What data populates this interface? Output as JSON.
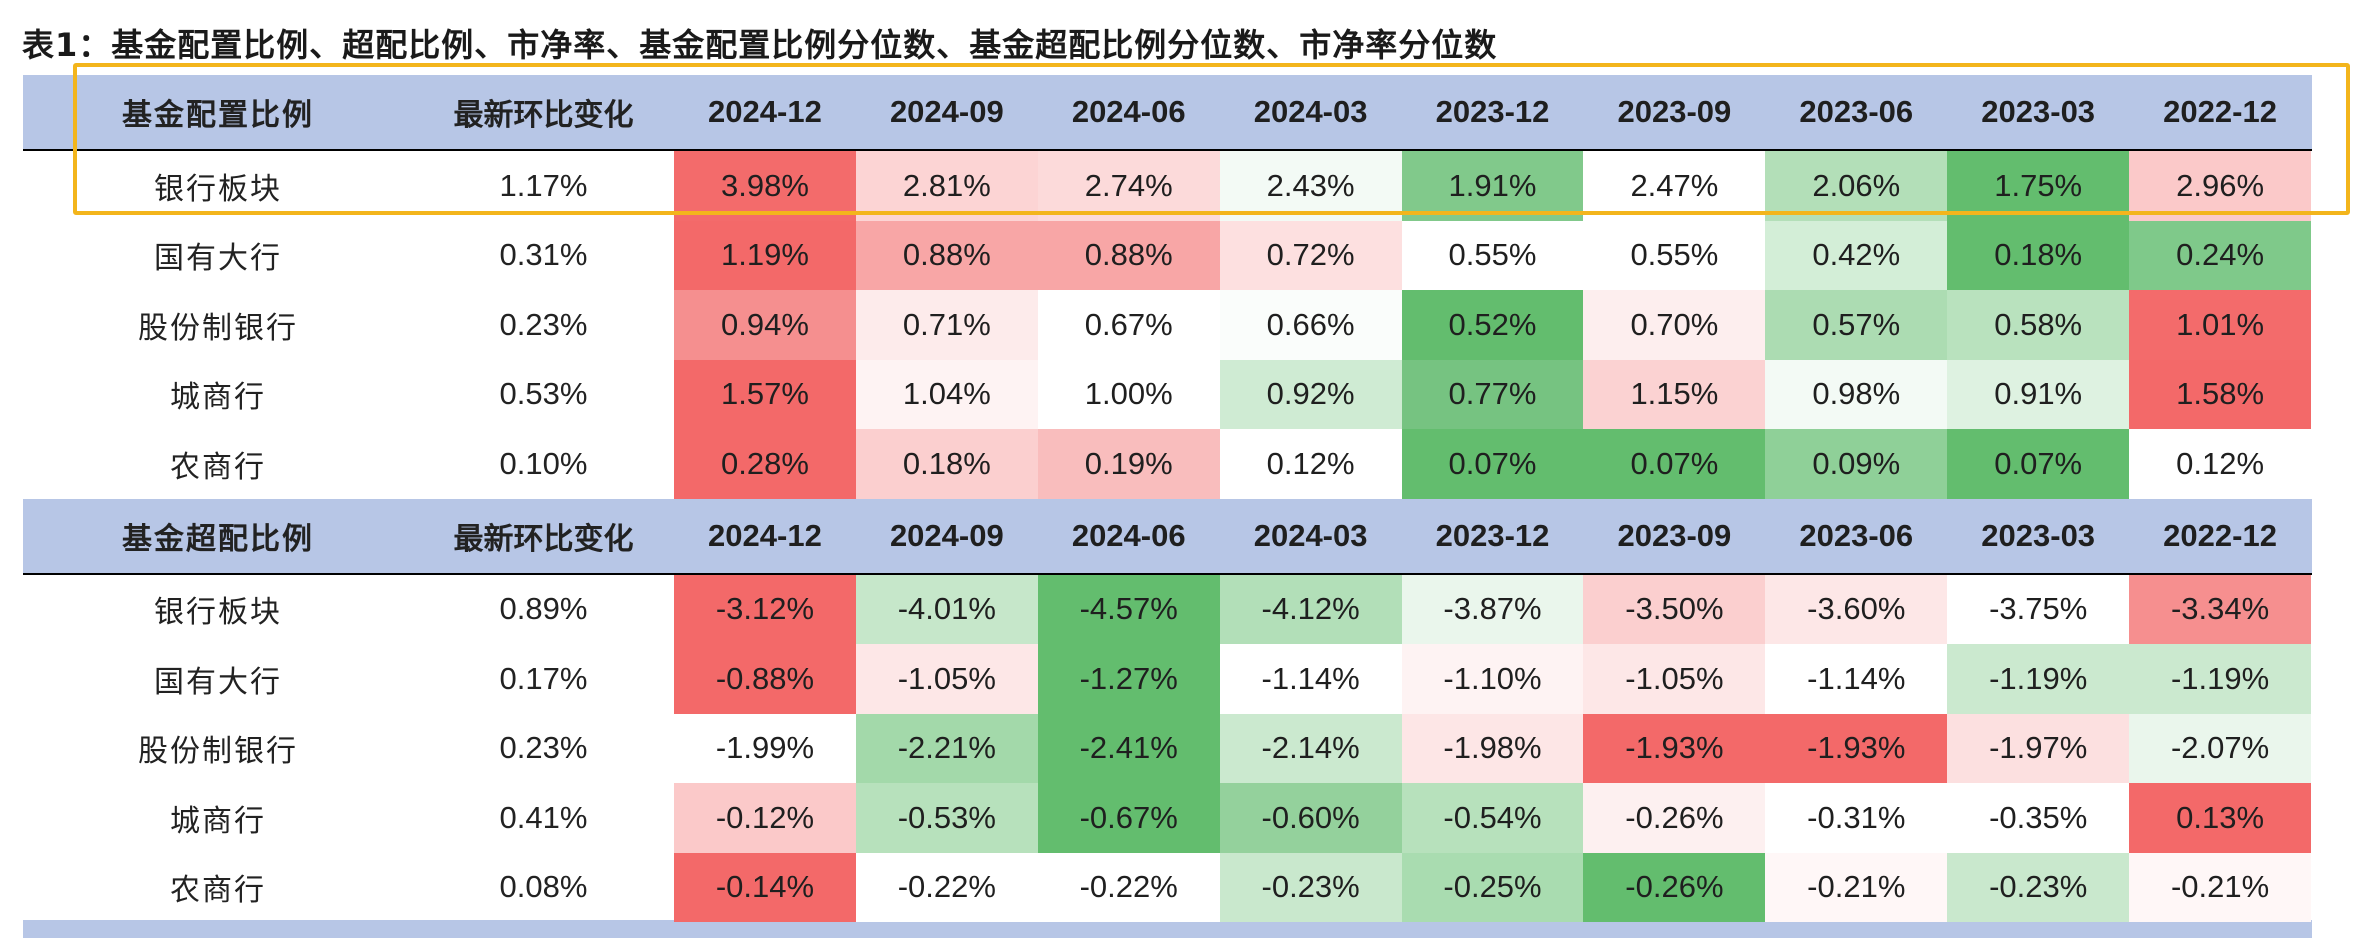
{
  "title": "表1：基金配置比例、超配比例、市净率、基金配置比例分位数、基金超配比例分位数、市净率分位数",
  "sections": [
    {
      "label": "基金配置比例",
      "change_label": "最新环比变化",
      "periods": [
        "2024-12",
        "2024-09",
        "2024-06",
        "2024-03",
        "2023-12",
        "2023-09",
        "2023-06",
        "2023-03",
        "2022-12"
      ],
      "rows": [
        {
          "name": "银行板块",
          "change": "1.17%",
          "values": [
            "3.98%",
            "2.81%",
            "2.74%",
            "2.43%",
            "1.91%",
            "2.47%",
            "2.06%",
            "1.75%",
            "2.96%"
          ],
          "colors": [
            "#f36b6b",
            "#fcd4d4",
            "#fcdada",
            "#f3faf5",
            "#81c98b",
            "#ffffff",
            "#b3dfb8",
            "#63bd6e",
            "#fbc9c9"
          ]
        },
        {
          "name": "国有大行",
          "change": "0.31%",
          "values": [
            "1.19%",
            "0.88%",
            "0.88%",
            "0.72%",
            "0.55%",
            "0.55%",
            "0.42%",
            "0.18%",
            "0.24%"
          ],
          "colors": [
            "#f36969",
            "#f8a6a6",
            "#f8a6a6",
            "#fde0e0",
            "#ffffff",
            "#ffffff",
            "#d3eed7",
            "#63bd6e",
            "#7fc98a"
          ]
        },
        {
          "name": "股份制银行",
          "change": "0.23%",
          "values": [
            "0.94%",
            "0.71%",
            "0.67%",
            "0.66%",
            "0.52%",
            "0.70%",
            "0.57%",
            "0.58%",
            "1.01%"
          ],
          "colors": [
            "#f58f8f",
            "#fdebeb",
            "#ffffff",
            "#fafdfb",
            "#63bd6e",
            "#fdeeee",
            "#acdcb2",
            "#b9e2be",
            "#f36b6b"
          ]
        },
        {
          "name": "城商行",
          "change": "0.53%",
          "values": [
            "1.57%",
            "1.04%",
            "1.00%",
            "0.92%",
            "0.77%",
            "1.15%",
            "0.98%",
            "0.91%",
            "1.58%"
          ],
          "colors": [
            "#f36969",
            "#fef3f3",
            "#ffffff",
            "#cfebd3",
            "#76c381",
            "#fbd2d2",
            "#f3faf5",
            "#def2e1",
            "#f36969"
          ]
        },
        {
          "name": "农商行",
          "change": "0.10%",
          "values": [
            "0.28%",
            "0.18%",
            "0.19%",
            "0.12%",
            "0.07%",
            "0.07%",
            "0.09%",
            "0.07%",
            "0.12%"
          ],
          "colors": [
            "#f36969",
            "#fbcfcf",
            "#f9bdbd",
            "#ffffff",
            "#63bd6e",
            "#63bd6e",
            "#8fd098",
            "#63bd6e",
            "#ffffff"
          ]
        }
      ]
    },
    {
      "label": "基金超配比例",
      "change_label": "最新环比变化",
      "periods": [
        "2024-12",
        "2024-09",
        "2024-06",
        "2024-03",
        "2023-12",
        "2023-09",
        "2023-06",
        "2023-03",
        "2022-12"
      ],
      "rows": [
        {
          "name": "银行板块",
          "change": "0.89%",
          "values": [
            "-3.12%",
            "-4.01%",
            "-4.57%",
            "-4.12%",
            "-3.87%",
            "-3.50%",
            "-3.60%",
            "-3.75%",
            "-3.34%"
          ],
          "colors": [
            "#f36969",
            "#c6e7ca",
            "#63bd6e",
            "#b2dfb8",
            "#eaf6ec",
            "#fbcfcf",
            "#fde7e7",
            "#ffffff",
            "#f68f8f"
          ]
        },
        {
          "name": "国有大行",
          "change": "0.17%",
          "values": [
            "-0.88%",
            "-1.05%",
            "-1.27%",
            "-1.14%",
            "-1.10%",
            "-1.05%",
            "-1.14%",
            "-1.19%",
            "-1.19%"
          ],
          "colors": [
            "#f36969",
            "#fde7e7",
            "#63bd6e",
            "#ffffff",
            "#fef3f3",
            "#fde7e7",
            "#ffffff",
            "#cbe9cf",
            "#cbe9cf"
          ]
        },
        {
          "name": "股份制银行",
          "change": "0.23%",
          "values": [
            "-1.99%",
            "-2.21%",
            "-2.41%",
            "-2.14%",
            "-1.98%",
            "-1.93%",
            "-1.93%",
            "-1.97%",
            "-2.07%"
          ],
          "colors": [
            "#ffffff",
            "#a3d9aa",
            "#63bd6e",
            "#cbe9cf",
            "#fde6e6",
            "#f36969",
            "#f36969",
            "#fce0e0",
            "#eaf6ec"
          ]
        },
        {
          "name": "城商行",
          "change": "0.41%",
          "values": [
            "-0.12%",
            "-0.53%",
            "-0.67%",
            "-0.60%",
            "-0.54%",
            "-0.26%",
            "-0.31%",
            "-0.35%",
            "0.13%"
          ],
          "colors": [
            "#fbc9c9",
            "#b7e1bc",
            "#63bd6e",
            "#94d19c",
            "#b7e1bc",
            "#fdf0f0",
            "#ffffff",
            "#ffffff",
            "#f36969"
          ]
        },
        {
          "name": "农商行",
          "change": "0.08%",
          "values": [
            "-0.14%",
            "-0.22%",
            "-0.22%",
            "-0.23%",
            "-0.25%",
            "-0.26%",
            "-0.21%",
            "-0.23%",
            "-0.21%"
          ],
          "colors": [
            "#f36969",
            "#ffffff",
            "#ffffff",
            "#c9e8cd",
            "#a9dcb0",
            "#63bd6e",
            "#fff7f7",
            "#c9e8cd",
            "#fff7f7"
          ]
        }
      ]
    }
  ]
}
